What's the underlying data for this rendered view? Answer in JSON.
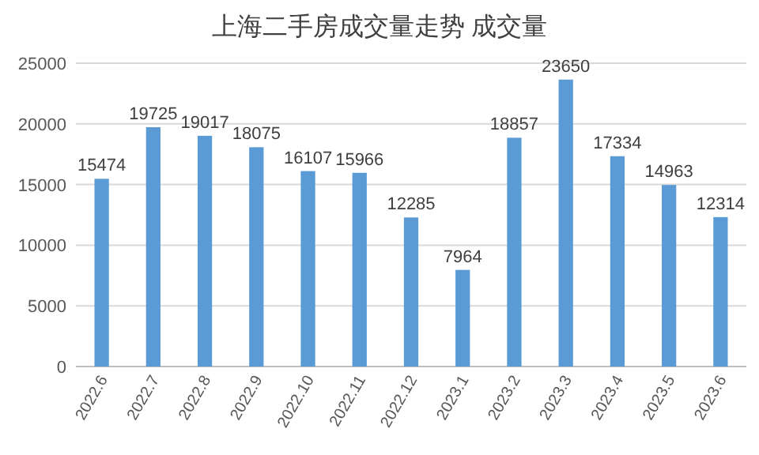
{
  "chart_data": {
    "type": "bar",
    "title": "上海二手房成交量走势 成交量",
    "categories": [
      "2022.6",
      "2022.7",
      "2022.8",
      "2022.9",
      "2022.10",
      "2022.11",
      "2022.12",
      "2023.1",
      "2023.2",
      "2023.3",
      "2023.4",
      "2023.5",
      "2023.6"
    ],
    "values": [
      15474,
      19725,
      19017,
      18075,
      16107,
      15966,
      12285,
      7964,
      18857,
      23650,
      17334,
      14963,
      12314
    ],
    "color": "#5b9bd5",
    "ylim": [
      0,
      25000
    ],
    "yticks": [
      0,
      5000,
      10000,
      15000,
      20000,
      25000
    ],
    "grid": "y",
    "data_labels": true
  }
}
